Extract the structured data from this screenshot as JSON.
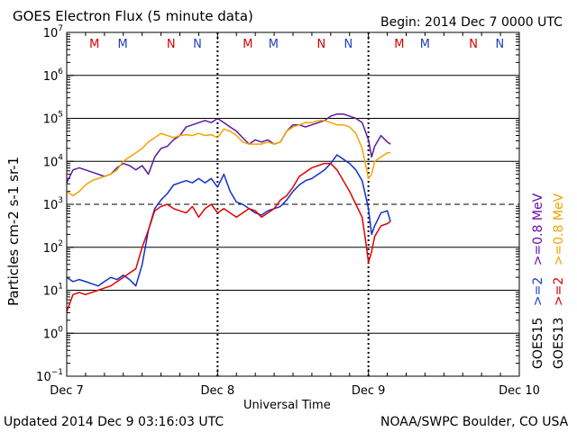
{
  "header": {
    "title": "GOES Electron Flux (5 minute data)",
    "begin": "Begin: 2014 Dec 7 0000 UTC"
  },
  "footer": {
    "updated": "Updated 2014 Dec  9 03:16:03 UTC",
    "source": "NOAA/SWPC Boulder, CO USA"
  },
  "chart_data": {
    "type": "line",
    "title": "GOES Electron Flux (5 minute data)",
    "xlabel": "Universal Time",
    "ylabel": "Particles cm-2 s-1 sr-1",
    "yscale": "log",
    "ylim_exp": [
      -1,
      7
    ],
    "xlim_hours": [
      0,
      72
    ],
    "x_ticks": [
      {
        "hours": 0,
        "label": "Dec 7"
      },
      {
        "hours": 24,
        "label": "Dec 8"
      },
      {
        "hours": 48,
        "label": "Dec 9"
      },
      {
        "hours": 72,
        "label": "Dec 10"
      }
    ],
    "y_ticks": [
      {
        "exp": -1,
        "label": "10"
      },
      {
        "exp": 0,
        "label": "10"
      },
      {
        "exp": 1,
        "label": "10"
      },
      {
        "exp": 2,
        "label": "10"
      },
      {
        "exp": 3,
        "label": "10"
      },
      {
        "exp": 4,
        "label": "10"
      },
      {
        "exp": 5,
        "label": "10"
      },
      {
        "exp": 6,
        "label": "10"
      },
      {
        "exp": 7,
        "label": "10"
      }
    ],
    "threshold_exp": 3,
    "markers": [
      {
        "hours": 4.4,
        "label": "M",
        "color": "#d40000"
      },
      {
        "hours": 8.9,
        "label": "M",
        "color": "#2040c0"
      },
      {
        "hours": 16.6,
        "label": "N",
        "color": "#d40000"
      },
      {
        "hours": 20.8,
        "label": "N",
        "color": "#2040c0"
      },
      {
        "hours": 28.8,
        "label": "M",
        "color": "#d40000"
      },
      {
        "hours": 32.9,
        "label": "M",
        "color": "#2040c0"
      },
      {
        "hours": 40.5,
        "label": "N",
        "color": "#d40000"
      },
      {
        "hours": 44.8,
        "label": "N",
        "color": "#2040c0"
      },
      {
        "hours": 52.9,
        "label": "M",
        "color": "#d40000"
      },
      {
        "hours": 57.0,
        "label": "M",
        "color": "#2040c0"
      },
      {
        "hours": 64.7,
        "label": "N",
        "color": "#d40000"
      },
      {
        "hours": 68.9,
        "label": "N",
        "color": "#2040c0"
      }
    ],
    "legend": [
      {
        "label": "GOES15",
        "color": "#000000"
      },
      {
        "label": ">=2",
        "color": "#2040c0"
      },
      {
        "label": ">=0.8 MeV",
        "color": "#6a0dad"
      },
      {
        "label": "GOES13",
        "color": "#000000"
      },
      {
        "label": ">=2",
        "color": "#e00000"
      },
      {
        "label": ">=0.8 MeV",
        "color": "#f5a300"
      }
    ],
    "series": [
      {
        "name": "GOES15 >=0.8 MeV",
        "color": "#5a1a9e",
        "points": [
          [
            0,
            3.5
          ],
          [
            1,
            3.8
          ],
          [
            2,
            3.85
          ],
          [
            3,
            3.8
          ],
          [
            4,
            3.75
          ],
          [
            5,
            3.7
          ],
          [
            6,
            3.65
          ],
          [
            7,
            3.7
          ],
          [
            8,
            3.85
          ],
          [
            9,
            3.95
          ],
          [
            10,
            3.9
          ],
          [
            11,
            3.8
          ],
          [
            12,
            3.9
          ],
          [
            13,
            3.7
          ],
          [
            14,
            4.1
          ],
          [
            15,
            4.3
          ],
          [
            16,
            4.35
          ],
          [
            17,
            4.5
          ],
          [
            18,
            4.6
          ],
          [
            19,
            4.8
          ],
          [
            20,
            4.85
          ],
          [
            21,
            4.9
          ],
          [
            22,
            4.95
          ],
          [
            23,
            4.9
          ],
          [
            24,
            5.0
          ],
          [
            25,
            4.9
          ],
          [
            26,
            4.8
          ],
          [
            27,
            4.7
          ],
          [
            28,
            4.55
          ],
          [
            29,
            4.4
          ],
          [
            30,
            4.5
          ],
          [
            31,
            4.45
          ],
          [
            32,
            4.5
          ],
          [
            33,
            4.4
          ],
          [
            34,
            4.45
          ],
          [
            35,
            4.7
          ],
          [
            36,
            4.85
          ],
          [
            37,
            4.85
          ],
          [
            38,
            4.8
          ],
          [
            39,
            4.85
          ],
          [
            40,
            4.9
          ],
          [
            41,
            4.95
          ],
          [
            42,
            5.05
          ],
          [
            43,
            5.1
          ],
          [
            44,
            5.1
          ],
          [
            45,
            5.05
          ],
          [
            46,
            5.0
          ],
          [
            47,
            4.9
          ],
          [
            48,
            4.5
          ],
          [
            48.5,
            4.1
          ],
          [
            49,
            4.35
          ],
          [
            50,
            4.6
          ],
          [
            51,
            4.45
          ],
          [
            51.5,
            4.4
          ]
        ]
      },
      {
        "name": "GOES13 >=0.8 MeV",
        "color": "#f5a300",
        "points": [
          [
            0,
            3.3
          ],
          [
            1,
            3.2
          ],
          [
            2,
            3.3
          ],
          [
            3,
            3.45
          ],
          [
            4,
            3.55
          ],
          [
            5,
            3.6
          ],
          [
            6,
            3.65
          ],
          [
            7,
            3.7
          ],
          [
            8,
            3.8
          ],
          [
            9,
            4.0
          ],
          [
            10,
            4.1
          ],
          [
            11,
            4.2
          ],
          [
            12,
            4.3
          ],
          [
            13,
            4.45
          ],
          [
            14,
            4.55
          ],
          [
            15,
            4.65
          ],
          [
            16,
            4.6
          ],
          [
            17,
            4.55
          ],
          [
            18,
            4.6
          ],
          [
            19,
            4.62
          ],
          [
            20,
            4.6
          ],
          [
            21,
            4.65
          ],
          [
            22,
            4.6
          ],
          [
            23,
            4.62
          ],
          [
            24,
            4.55
          ],
          [
            25,
            4.75
          ],
          [
            26,
            4.7
          ],
          [
            27,
            4.6
          ],
          [
            28,
            4.45
          ],
          [
            29,
            4.4
          ],
          [
            30,
            4.4
          ],
          [
            31,
            4.4
          ],
          [
            32,
            4.45
          ],
          [
            33,
            4.4
          ],
          [
            34,
            4.45
          ],
          [
            35,
            4.7
          ],
          [
            36,
            4.8
          ],
          [
            37,
            4.85
          ],
          [
            38,
            4.9
          ],
          [
            39,
            4.9
          ],
          [
            40,
            4.95
          ],
          [
            41,
            4.95
          ],
          [
            42,
            4.9
          ],
          [
            43,
            4.85
          ],
          [
            44,
            4.85
          ],
          [
            45,
            4.8
          ],
          [
            46,
            4.65
          ],
          [
            47,
            4.3
          ],
          [
            48,
            3.6
          ],
          [
            48.5,
            3.7
          ],
          [
            49,
            4.0
          ],
          [
            50,
            4.1
          ],
          [
            51,
            4.2
          ],
          [
            51.5,
            4.2
          ]
        ]
      },
      {
        "name": "GOES15 >=2 MeV",
        "color": "#1030d0",
        "points": [
          [
            0,
            1.3
          ],
          [
            1,
            1.2
          ],
          [
            2,
            1.25
          ],
          [
            3,
            1.2
          ],
          [
            4,
            1.15
          ],
          [
            5,
            1.1
          ],
          [
            6,
            1.2
          ],
          [
            7,
            1.3
          ],
          [
            8,
            1.25
          ],
          [
            9,
            1.35
          ],
          [
            10,
            1.25
          ],
          [
            11,
            1.1
          ],
          [
            12,
            1.6
          ],
          [
            13,
            2.4
          ],
          [
            14,
            2.9
          ],
          [
            15,
            3.1
          ],
          [
            16,
            3.25
          ],
          [
            17,
            3.45
          ],
          [
            18,
            3.5
          ],
          [
            19,
            3.55
          ],
          [
            20,
            3.5
          ],
          [
            21,
            3.6
          ],
          [
            22,
            3.5
          ],
          [
            23,
            3.6
          ],
          [
            24,
            3.4
          ],
          [
            25,
            3.7
          ],
          [
            26,
            3.3
          ],
          [
            27,
            3.05
          ],
          [
            28,
            3.0
          ],
          [
            29,
            2.9
          ],
          [
            30,
            2.8
          ],
          [
            31,
            2.75
          ],
          [
            32,
            2.85
          ],
          [
            33,
            2.9
          ],
          [
            34,
            2.95
          ],
          [
            35,
            3.1
          ],
          [
            36,
            3.3
          ],
          [
            37,
            3.45
          ],
          [
            38,
            3.55
          ],
          [
            39,
            3.6
          ],
          [
            40,
            3.7
          ],
          [
            41,
            3.8
          ],
          [
            42,
            3.95
          ],
          [
            43,
            4.15
          ],
          [
            44,
            4.05
          ],
          [
            45,
            3.95
          ],
          [
            46,
            3.8
          ],
          [
            47,
            3.55
          ],
          [
            48,
            2.9
          ],
          [
            48.5,
            2.3
          ],
          [
            49,
            2.5
          ],
          [
            50,
            2.8
          ],
          [
            51,
            2.85
          ],
          [
            51.5,
            2.6
          ]
        ]
      },
      {
        "name": "GOES13 >=2 MeV",
        "color": "#e00000",
        "points": [
          [
            0,
            0.5
          ],
          [
            1,
            0.9
          ],
          [
            2,
            0.95
          ],
          [
            3,
            0.9
          ],
          [
            4,
            0.95
          ],
          [
            5,
            1.0
          ],
          [
            6,
            1.05
          ],
          [
            7,
            1.1
          ],
          [
            8,
            1.2
          ],
          [
            9,
            1.3
          ],
          [
            10,
            1.4
          ],
          [
            11,
            1.5
          ],
          [
            12,
            2.0
          ],
          [
            13,
            2.4
          ],
          [
            14,
            2.85
          ],
          [
            15,
            2.95
          ],
          [
            16,
            3.0
          ],
          [
            17,
            2.9
          ],
          [
            18,
            2.85
          ],
          [
            19,
            2.8
          ],
          [
            20,
            2.95
          ],
          [
            21,
            2.7
          ],
          [
            22,
            2.9
          ],
          [
            23,
            3.0
          ],
          [
            24,
            2.8
          ],
          [
            25,
            2.9
          ],
          [
            26,
            2.8
          ],
          [
            27,
            2.7
          ],
          [
            28,
            2.8
          ],
          [
            29,
            2.9
          ],
          [
            30,
            2.85
          ],
          [
            31,
            2.7
          ],
          [
            32,
            2.8
          ],
          [
            33,
            2.9
          ],
          [
            34,
            3.1
          ],
          [
            35,
            3.2
          ],
          [
            36,
            3.4
          ],
          [
            37,
            3.65
          ],
          [
            38,
            3.75
          ],
          [
            39,
            3.85
          ],
          [
            40,
            3.9
          ],
          [
            41,
            3.95
          ],
          [
            42,
            3.95
          ],
          [
            43,
            3.8
          ],
          [
            44,
            3.55
          ],
          [
            45,
            3.3
          ],
          [
            46,
            3.0
          ],
          [
            47,
            2.7
          ],
          [
            47.5,
            2.2
          ],
          [
            48,
            1.65
          ],
          [
            48.5,
            1.9
          ],
          [
            49,
            2.25
          ],
          [
            50,
            2.5
          ],
          [
            51,
            2.55
          ],
          [
            51.5,
            2.6
          ]
        ]
      }
    ]
  }
}
